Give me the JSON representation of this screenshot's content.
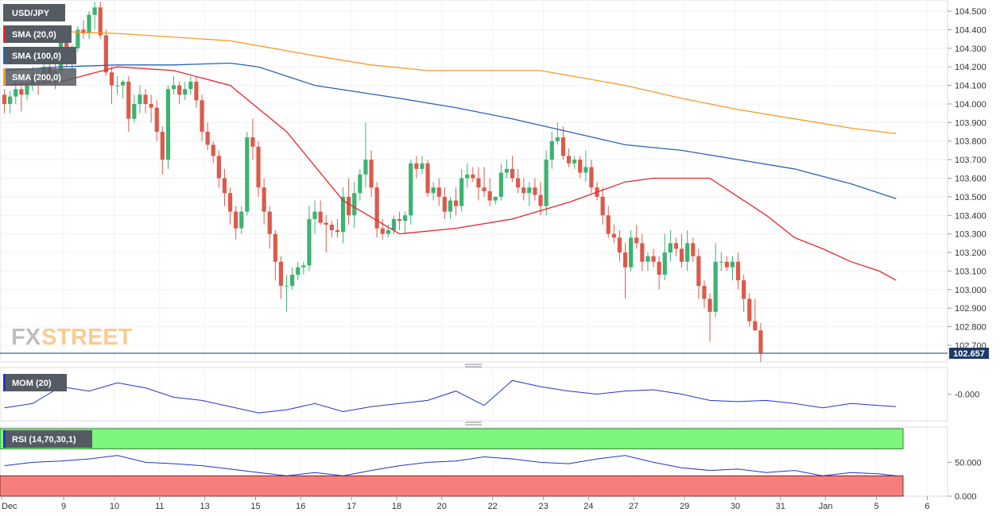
{
  "instrument": "USD/JPY",
  "indicators": {
    "sma20": "SMA (20,0)",
    "sma100": "SMA (100,0)",
    "sma200": "SMA (200,0)",
    "mom": "MOM (20)",
    "rsi": "RSI (14,70,30,1)"
  },
  "watermark": {
    "fx": "FX",
    "street": "STREET"
  },
  "colors": {
    "bull": "#3cb371",
    "bear": "#dc5a4b",
    "sma20": "#e8242a",
    "sma100": "#2a62b8",
    "sma200": "#f59b25",
    "mom": "#2233cc",
    "rsi": "#2233cc",
    "rsi_over": "#7cf77c",
    "rsi_under": "#f77f7b",
    "last_price_line": "#1b3a6b"
  },
  "chart_data": {
    "type": "candlestick",
    "main_axis": {
      "ticks": [
        "104.500",
        "104.400",
        "104.300",
        "104.200",
        "104.100",
        "104.000",
        "103.900",
        "103.800",
        "103.700",
        "103.600",
        "103.500",
        "103.400",
        "103.300",
        "103.200",
        "103.100",
        "103.000",
        "102.900",
        "102.800",
        "102.700"
      ],
      "range": [
        102.61,
        104.56
      ],
      "last_price": "102.657"
    },
    "mom_axis": {
      "ticks": [
        "-0.000"
      ]
    },
    "rsi_axis": {
      "ticks": [
        "50.000",
        "0.000"
      ],
      "levels": [
        70,
        30
      ]
    },
    "x_axis": {
      "labels": [
        "Dec",
        "9",
        "10",
        "11",
        "13",
        "15",
        "16",
        "17",
        "18",
        "20",
        "22",
        "23",
        "24",
        "27",
        "29",
        "30",
        "31",
        "Jan",
        "5",
        "6"
      ],
      "label_at": [
        0,
        11,
        20,
        28,
        36,
        45,
        53,
        62,
        70,
        78,
        87,
        96,
        104,
        112,
        121,
        130,
        138,
        146,
        155,
        164
      ]
    },
    "ohlc": [
      [
        104.05,
        104.08,
        103.95,
        104.0
      ],
      [
        104.0,
        104.07,
        103.95,
        104.04
      ],
      [
        104.04,
        104.15,
        104.0,
        104.08
      ],
      [
        104.08,
        104.12,
        103.96,
        104.05
      ],
      [
        104.05,
        104.12,
        104.02,
        104.1
      ],
      [
        104.1,
        104.2,
        104.07,
        104.15
      ],
      [
        104.15,
        104.18,
        104.05,
        104.12
      ],
      [
        104.12,
        104.25,
        104.1,
        104.2
      ],
      [
        104.2,
        104.28,
        104.1,
        104.14
      ],
      [
        104.14,
        104.22,
        104.08,
        104.18
      ],
      [
        104.18,
        104.35,
        104.15,
        104.33
      ],
      [
        104.33,
        104.38,
        104.2,
        104.25
      ],
      [
        104.25,
        104.32,
        104.18,
        104.3
      ],
      [
        104.3,
        104.42,
        104.28,
        104.4
      ],
      [
        104.4,
        104.45,
        104.35,
        104.38
      ],
      [
        104.38,
        104.5,
        104.35,
        104.48
      ],
      [
        104.48,
        104.55,
        104.4,
        104.52
      ],
      [
        104.52,
        104.55,
        104.35,
        104.37
      ],
      [
        104.37,
        104.4,
        104.15,
        104.17
      ],
      [
        104.17,
        104.2,
        104.0,
        104.1
      ],
      [
        104.1,
        104.15,
        104.05,
        104.1
      ],
      [
        104.1,
        104.13,
        104.03,
        104.12
      ],
      [
        104.12,
        104.15,
        103.85,
        103.92
      ],
      [
        103.92,
        104.05,
        103.9,
        104.0
      ],
      [
        104.0,
        104.1,
        103.95,
        104.05
      ],
      [
        104.05,
        104.08,
        103.95,
        104.0
      ],
      [
        104.0,
        104.05,
        103.9,
        103.98
      ],
      [
        103.98,
        104.02,
        103.8,
        103.85
      ],
      [
        103.85,
        103.88,
        103.62,
        103.7
      ],
      [
        103.7,
        104.1,
        103.65,
        104.08
      ],
      [
        104.08,
        104.15,
        104.05,
        104.1
      ],
      [
        104.1,
        104.12,
        104.0,
        104.05
      ],
      [
        104.05,
        104.12,
        104.02,
        104.08
      ],
      [
        104.08,
        104.15,
        104.05,
        104.12
      ],
      [
        104.12,
        104.15,
        103.98,
        104.02
      ],
      [
        104.02,
        104.05,
        103.8,
        103.85
      ],
      [
        103.85,
        103.9,
        103.75,
        103.78
      ],
      [
        103.78,
        103.8,
        103.68,
        103.72
      ],
      [
        103.72,
        103.75,
        103.55,
        103.6
      ],
      [
        103.6,
        103.65,
        103.45,
        103.52
      ],
      [
        103.52,
        103.55,
        103.35,
        103.42
      ],
      [
        103.42,
        103.45,
        103.27,
        103.33
      ],
      [
        103.33,
        103.45,
        103.3,
        103.42
      ],
      [
        103.42,
        103.85,
        103.4,
        103.82
      ],
      [
        103.82,
        103.92,
        103.7,
        103.77
      ],
      [
        103.77,
        103.8,
        103.5,
        103.55
      ],
      [
        103.55,
        103.6,
        103.35,
        103.42
      ],
      [
        103.42,
        103.45,
        103.22,
        103.3
      ],
      [
        103.3,
        103.32,
        103.05,
        103.15
      ],
      [
        103.15,
        103.18,
        102.95,
        103.02
      ],
      [
        103.02,
        103.08,
        102.88,
        103.02
      ],
      [
        103.02,
        103.12,
        103.0,
        103.08
      ],
      [
        103.08,
        103.15,
        103.05,
        103.12
      ],
      [
        103.12,
        103.15,
        103.08,
        103.13
      ],
      [
        103.13,
        103.45,
        103.1,
        103.38
      ],
      [
        103.38,
        103.48,
        103.3,
        103.42
      ],
      [
        103.42,
        103.48,
        103.35,
        103.36
      ],
      [
        103.36,
        103.4,
        103.2,
        103.35
      ],
      [
        103.35,
        103.37,
        103.28,
        103.32
      ],
      [
        103.32,
        103.38,
        103.28,
        103.31
      ],
      [
        103.31,
        103.55,
        103.25,
        103.5
      ],
      [
        103.5,
        103.6,
        103.35,
        103.4
      ],
      [
        103.4,
        103.58,
        103.33,
        103.52
      ],
      [
        103.52,
        103.65,
        103.48,
        103.62
      ],
      [
        103.62,
        103.9,
        103.55,
        103.7
      ],
      [
        103.7,
        103.75,
        103.5,
        103.55
      ],
      [
        103.55,
        103.58,
        103.28,
        103.33
      ],
      [
        103.33,
        103.38,
        103.27,
        103.3
      ],
      [
        103.3,
        103.35,
        103.28,
        103.32
      ],
      [
        103.32,
        103.4,
        103.3,
        103.38
      ],
      [
        103.38,
        103.42,
        103.32,
        103.37
      ],
      [
        103.37,
        103.42,
        103.3,
        103.4
      ],
      [
        103.4,
        103.7,
        103.35,
        103.68
      ],
      [
        103.68,
        103.72,
        103.6,
        103.65
      ],
      [
        103.65,
        103.72,
        103.62,
        103.68
      ],
      [
        103.68,
        103.7,
        103.5,
        103.52
      ],
      [
        103.52,
        103.58,
        103.48,
        103.55
      ],
      [
        103.55,
        103.6,
        103.45,
        103.5
      ],
      [
        103.5,
        103.55,
        103.38,
        103.42
      ],
      [
        103.42,
        103.5,
        103.38,
        103.48
      ],
      [
        103.48,
        103.55,
        103.4,
        103.45
      ],
      [
        103.45,
        103.65,
        103.42,
        103.6
      ],
      [
        103.6,
        103.68,
        103.55,
        103.62
      ],
      [
        103.62,
        103.66,
        103.58,
        103.6
      ],
      [
        103.6,
        103.66,
        103.48,
        103.55
      ],
      [
        103.55,
        103.66,
        103.5,
        103.53
      ],
      [
        103.53,
        103.6,
        103.45,
        103.48
      ],
      [
        103.48,
        103.5,
        103.46,
        103.5
      ],
      [
        103.5,
        103.68,
        103.48,
        103.63
      ],
      [
        103.63,
        103.7,
        103.6,
        103.65
      ],
      [
        103.65,
        103.72,
        103.58,
        103.6
      ],
      [
        103.6,
        103.65,
        103.52,
        103.55
      ],
      [
        103.55,
        103.6,
        103.48,
        103.52
      ],
      [
        103.52,
        103.58,
        103.45,
        103.55
      ],
      [
        103.55,
        103.6,
        103.48,
        103.51
      ],
      [
        103.51,
        103.58,
        103.4,
        103.45
      ],
      [
        103.45,
        103.75,
        103.4,
        103.7
      ],
      [
        103.7,
        103.85,
        103.65,
        103.8
      ],
      [
        103.8,
        103.9,
        103.78,
        103.82
      ],
      [
        103.82,
        103.88,
        103.7,
        103.72
      ],
      [
        103.72,
        103.76,
        103.66,
        103.68
      ],
      [
        103.68,
        103.72,
        103.65,
        103.7
      ],
      [
        103.7,
        103.72,
        103.6,
        103.63
      ],
      [
        103.63,
        103.75,
        103.58,
        103.66
      ],
      [
        103.66,
        103.7,
        103.52,
        103.55
      ],
      [
        103.55,
        103.58,
        103.48,
        103.5
      ],
      [
        103.5,
        103.55,
        103.35,
        103.4
      ],
      [
        103.4,
        103.45,
        103.28,
        103.3
      ],
      [
        103.3,
        103.35,
        103.25,
        103.28
      ],
      [
        103.28,
        103.32,
        103.15,
        103.2
      ],
      [
        103.2,
        103.25,
        102.95,
        103.12
      ],
      [
        103.12,
        103.32,
        103.1,
        103.28
      ],
      [
        103.28,
        103.35,
        103.22,
        103.25
      ],
      [
        103.25,
        103.3,
        103.1,
        103.15
      ],
      [
        103.15,
        103.2,
        103.1,
        103.18
      ],
      [
        103.18,
        103.22,
        103.12,
        103.15
      ],
      [
        103.15,
        103.18,
        103.0,
        103.08
      ],
      [
        103.08,
        103.3,
        103.05,
        103.2
      ],
      [
        103.2,
        103.32,
        103.15,
        103.25
      ],
      [
        103.25,
        103.28,
        103.18,
        103.22
      ],
      [
        103.22,
        103.3,
        103.12,
        103.15
      ],
      [
        103.15,
        103.32,
        103.1,
        103.25
      ],
      [
        103.25,
        103.28,
        103.15,
        103.18
      ],
      [
        103.18,
        103.22,
        102.95,
        103.02
      ],
      [
        103.02,
        103.05,
        102.9,
        102.95
      ],
      [
        102.95,
        102.98,
        102.72,
        102.88
      ],
      [
        102.88,
        103.25,
        102.85,
        103.15
      ],
      [
        103.15,
        103.2,
        103.1,
        103.15
      ],
      [
        103.15,
        103.18,
        103.1,
        103.12
      ],
      [
        103.12,
        103.18,
        103.05,
        103.15
      ],
      [
        103.15,
        103.2,
        103.0,
        103.05
      ],
      [
        103.05,
        103.08,
        102.88,
        102.95
      ],
      [
        102.95,
        102.98,
        102.8,
        102.83
      ],
      [
        102.83,
        102.95,
        102.78,
        102.78
      ],
      [
        102.78,
        102.82,
        102.61,
        102.66
      ]
    ],
    "sma20": [
      [
        0,
        104.1
      ],
      [
        10,
        104.12
      ],
      [
        20,
        104.2
      ],
      [
        30,
        104.18
      ],
      [
        40,
        104.1
      ],
      [
        50,
        103.85
      ],
      [
        60,
        103.48
      ],
      [
        70,
        103.3
      ],
      [
        80,
        103.33
      ],
      [
        90,
        103.38
      ],
      [
        100,
        103.47
      ],
      [
        110,
        103.58
      ],
      [
        115,
        103.6
      ],
      [
        125,
        103.6
      ],
      [
        130,
        103.5
      ],
      [
        135,
        103.4
      ],
      [
        140,
        103.28
      ],
      [
        145,
        103.22
      ],
      [
        150,
        103.15
      ],
      [
        155,
        103.1
      ],
      [
        158,
        103.05
      ]
    ],
    "sma100": [
      [
        0,
        104.18
      ],
      [
        10,
        104.2
      ],
      [
        20,
        104.21
      ],
      [
        30,
        104.21
      ],
      [
        40,
        104.22
      ],
      [
        45,
        104.2
      ],
      [
        55,
        104.1
      ],
      [
        70,
        104.03
      ],
      [
        80,
        103.98
      ],
      [
        90,
        103.92
      ],
      [
        100,
        103.85
      ],
      [
        110,
        103.78
      ],
      [
        120,
        103.75
      ],
      [
        130,
        103.7
      ],
      [
        140,
        103.65
      ],
      [
        150,
        103.57
      ],
      [
        158,
        103.49
      ]
    ],
    "sma200": [
      [
        0,
        104.4
      ],
      [
        20,
        104.38
      ],
      [
        40,
        104.34
      ],
      [
        55,
        104.26
      ],
      [
        65,
        104.21
      ],
      [
        75,
        104.18
      ],
      [
        85,
        104.18
      ],
      [
        95,
        104.18
      ],
      [
        110,
        104.1
      ],
      [
        120,
        104.03
      ],
      [
        130,
        103.97
      ],
      [
        140,
        103.92
      ],
      [
        150,
        103.87
      ],
      [
        158,
        103.84
      ]
    ],
    "mom": [
      [
        0,
        -0.22
      ],
      [
        5,
        -0.15
      ],
      [
        10,
        0.12
      ],
      [
        15,
        0.05
      ],
      [
        20,
        0.18
      ],
      [
        25,
        0.1
      ],
      [
        30,
        -0.05
      ],
      [
        35,
        -0.1
      ],
      [
        40,
        -0.2
      ],
      [
        45,
        -0.3
      ],
      [
        50,
        -0.25
      ],
      [
        55,
        -0.15
      ],
      [
        60,
        -0.28
      ],
      [
        65,
        -0.2
      ],
      [
        70,
        -0.15
      ],
      [
        75,
        -0.1
      ],
      [
        80,
        0.05
      ],
      [
        85,
        -0.18
      ],
      [
        90,
        0.22
      ],
      [
        95,
        0.12
      ],
      [
        100,
        0.05
      ],
      [
        105,
        0.0
      ],
      [
        110,
        0.05
      ],
      [
        115,
        0.07
      ],
      [
        120,
        0.0
      ],
      [
        125,
        -0.1
      ],
      [
        130,
        -0.12
      ],
      [
        135,
        -0.1
      ],
      [
        140,
        -0.15
      ],
      [
        145,
        -0.22
      ],
      [
        150,
        -0.15
      ],
      [
        155,
        -0.18
      ],
      [
        158,
        -0.2
      ]
    ],
    "rsi": [
      [
        0,
        45
      ],
      [
        5,
        50
      ],
      [
        10,
        52
      ],
      [
        15,
        55
      ],
      [
        20,
        60
      ],
      [
        25,
        50
      ],
      [
        30,
        48
      ],
      [
        35,
        45
      ],
      [
        40,
        40
      ],
      [
        45,
        35
      ],
      [
        50,
        30
      ],
      [
        55,
        35
      ],
      [
        60,
        30
      ],
      [
        65,
        38
      ],
      [
        70,
        45
      ],
      [
        75,
        50
      ],
      [
        80,
        52
      ],
      [
        85,
        58
      ],
      [
        90,
        55
      ],
      [
        95,
        50
      ],
      [
        100,
        48
      ],
      [
        105,
        55
      ],
      [
        110,
        60
      ],
      [
        115,
        50
      ],
      [
        120,
        42
      ],
      [
        125,
        38
      ],
      [
        130,
        40
      ],
      [
        135,
        35
      ],
      [
        140,
        38
      ],
      [
        145,
        30
      ],
      [
        150,
        35
      ],
      [
        155,
        33
      ],
      [
        158,
        30
      ]
    ]
  }
}
